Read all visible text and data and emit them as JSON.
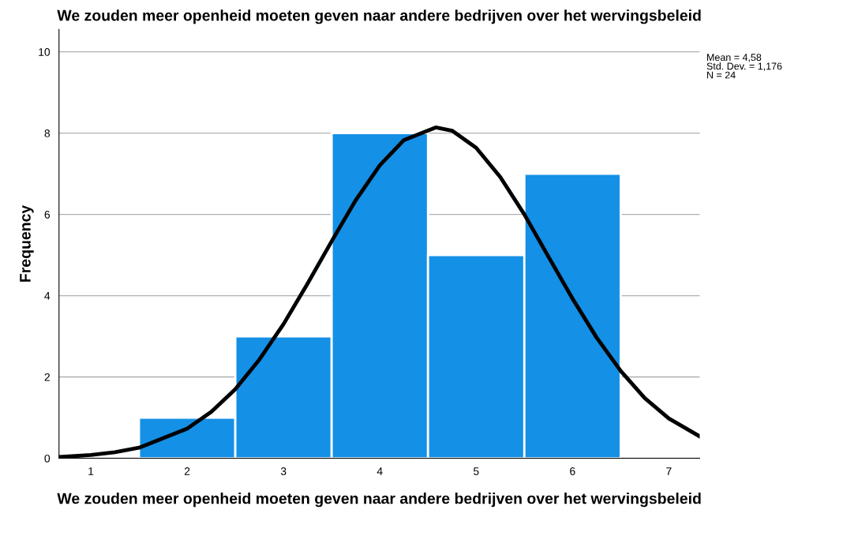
{
  "chart_data": {
    "type": "histogram",
    "title": "We zouden meer openheid moeten geven naar andere bedrijven over het wervingsbeleid",
    "xlabel": "We zouden meer openheid moeten geven naar andere bedrijven over het wervingsbeleid",
    "ylabel": "Frequency",
    "bins": [
      1.5,
      2.5,
      3.5,
      4.5,
      5.5,
      6.5
    ],
    "values": [
      1,
      3,
      8,
      5,
      7
    ],
    "color": "#1490e6",
    "series": [
      {
        "type": "line",
        "color": "#000000",
        "x": [
          0.67,
          1,
          1.25,
          1.5,
          2,
          2.25,
          2.5,
          2.75,
          3,
          3.25,
          3.5,
          3.75,
          4,
          4.25,
          4.58,
          4.75,
          5,
          5.25,
          5.5,
          5.75,
          6,
          6.25,
          6.5,
          6.75,
          7,
          7.32
        ],
        "values": [
          0.03,
          0.08,
          0.15,
          0.26,
          0.73,
          1.14,
          1.7,
          2.43,
          3.3,
          4.3,
          5.34,
          6.35,
          7.21,
          7.83,
          8.14,
          8.06,
          7.64,
          6.92,
          6.0,
          4.96,
          3.93,
          2.97,
          2.15,
          1.48,
          0.98,
          0.54
        ]
      }
    ],
    "xlim": [
      0.67,
      7.32
    ],
    "xticks": [
      1,
      2,
      3,
      4,
      5,
      6,
      7
    ],
    "ylim": [
      0,
      10.55
    ],
    "yticks": [
      0,
      2,
      4,
      6,
      8,
      10
    ],
    "grid": "y",
    "line_style": "solid",
    "annotations": [
      "Mean = 4,58\nStd. Dev. = 1,176\nN = 24"
    ]
  }
}
